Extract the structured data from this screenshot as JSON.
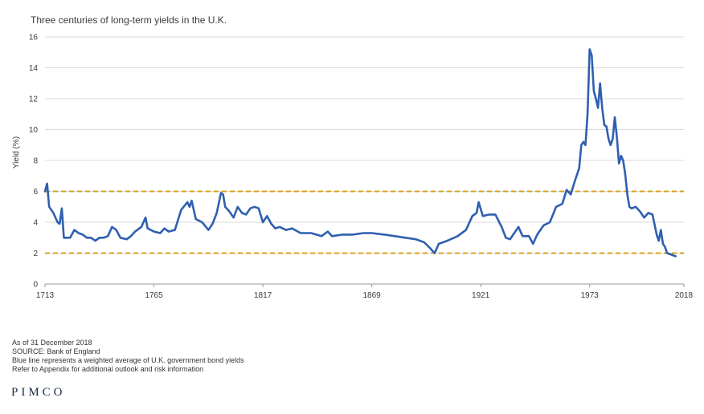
{
  "chart_data": {
    "type": "line",
    "title": "Three centuries of long-term yields in the U.K.",
    "xlabel": "",
    "ylabel": "Yield (%)",
    "xlim": [
      1713,
      2018
    ],
    "ylim": [
      0,
      16
    ],
    "yticks": [
      0,
      2,
      4,
      6,
      8,
      10,
      12,
      14,
      16
    ],
    "xticks": [
      "1713",
      "1765",
      "1817",
      "1869",
      "1921",
      "1973",
      "2018"
    ],
    "grid": true,
    "reference_lines": [
      2,
      6
    ],
    "colors": {
      "line": "#2f5fb0",
      "reference": "#d9a21b",
      "grid": "#d9d9d9"
    },
    "series": [
      {
        "values": [
          [
            1713,
            6.0
          ],
          [
            1714,
            6.5
          ],
          [
            1715,
            5.0
          ],
          [
            1717,
            4.6
          ],
          [
            1719,
            4.0
          ],
          [
            1720,
            3.9
          ],
          [
            1721,
            4.9
          ],
          [
            1722,
            3.0
          ],
          [
            1725,
            3.0
          ],
          [
            1727,
            3.5
          ],
          [
            1729,
            3.3
          ],
          [
            1731,
            3.2
          ],
          [
            1733,
            3.0
          ],
          [
            1735,
            3.0
          ],
          [
            1737,
            2.8
          ],
          [
            1739,
            3.0
          ],
          [
            1741,
            3.0
          ],
          [
            1743,
            3.1
          ],
          [
            1745,
            3.7
          ],
          [
            1747,
            3.5
          ],
          [
            1749,
            3.0
          ],
          [
            1752,
            2.9
          ],
          [
            1754,
            3.1
          ],
          [
            1756,
            3.4
          ],
          [
            1759,
            3.7
          ],
          [
            1761,
            4.3
          ],
          [
            1762,
            3.6
          ],
          [
            1765,
            3.4
          ],
          [
            1768,
            3.3
          ],
          [
            1770,
            3.6
          ],
          [
            1772,
            3.4
          ],
          [
            1775,
            3.5
          ],
          [
            1778,
            4.8
          ],
          [
            1781,
            5.3
          ],
          [
            1782,
            5.0
          ],
          [
            1783,
            5.4
          ],
          [
            1785,
            4.2
          ],
          [
            1788,
            4.0
          ],
          [
            1791,
            3.5
          ],
          [
            1793,
            3.9
          ],
          [
            1795,
            4.6
          ],
          [
            1797,
            5.9
          ],
          [
            1798,
            5.8
          ],
          [
            1799,
            5.0
          ],
          [
            1801,
            4.7
          ],
          [
            1803,
            4.3
          ],
          [
            1805,
            5.0
          ],
          [
            1807,
            4.6
          ],
          [
            1809,
            4.5
          ],
          [
            1811,
            4.9
          ],
          [
            1813,
            5.0
          ],
          [
            1815,
            4.9
          ],
          [
            1817,
            4.0
          ],
          [
            1819,
            4.4
          ],
          [
            1821,
            3.9
          ],
          [
            1823,
            3.6
          ],
          [
            1825,
            3.7
          ],
          [
            1828,
            3.5
          ],
          [
            1831,
            3.6
          ],
          [
            1835,
            3.3
          ],
          [
            1840,
            3.3
          ],
          [
            1845,
            3.1
          ],
          [
            1848,
            3.4
          ],
          [
            1850,
            3.1
          ],
          [
            1855,
            3.2
          ],
          [
            1860,
            3.2
          ],
          [
            1865,
            3.3
          ],
          [
            1869,
            3.3
          ],
          [
            1875,
            3.2
          ],
          [
            1880,
            3.1
          ],
          [
            1885,
            3.0
          ],
          [
            1890,
            2.9
          ],
          [
            1894,
            2.7
          ],
          [
            1897,
            2.3
          ],
          [
            1899,
            2.0
          ],
          [
            1901,
            2.6
          ],
          [
            1905,
            2.8
          ],
          [
            1910,
            3.1
          ],
          [
            1914,
            3.5
          ],
          [
            1917,
            4.4
          ],
          [
            1919,
            4.6
          ],
          [
            1920,
            5.3
          ],
          [
            1922,
            4.4
          ],
          [
            1925,
            4.5
          ],
          [
            1928,
            4.5
          ],
          [
            1931,
            3.7
          ],
          [
            1933,
            3.0
          ],
          [
            1935,
            2.9
          ],
          [
            1937,
            3.3
          ],
          [
            1939,
            3.7
          ],
          [
            1941,
            3.1
          ],
          [
            1944,
            3.1
          ],
          [
            1946,
            2.6
          ],
          [
            1948,
            3.2
          ],
          [
            1951,
            3.8
          ],
          [
            1954,
            4.0
          ],
          [
            1957,
            5.0
          ],
          [
            1960,
            5.2
          ],
          [
            1962,
            6.1
          ],
          [
            1964,
            5.8
          ],
          [
            1966,
            6.7
          ],
          [
            1968,
            7.5
          ],
          [
            1969,
            9.0
          ],
          [
            1970,
            9.2
          ],
          [
            1971,
            9.0
          ],
          [
            1972,
            11.0
          ],
          [
            1973,
            15.2
          ],
          [
            1974,
            14.8
          ],
          [
            1975,
            12.5
          ],
          [
            1976,
            12.0
          ],
          [
            1977,
            11.4
          ],
          [
            1978,
            13.0
          ],
          [
            1979,
            11.4
          ],
          [
            1980,
            10.3
          ],
          [
            1981,
            10.2
          ],
          [
            1982,
            9.4
          ],
          [
            1983,
            9.0
          ],
          [
            1984,
            9.4
          ],
          [
            1985,
            10.8
          ],
          [
            1986,
            9.5
          ],
          [
            1987,
            7.8
          ],
          [
            1988,
            8.3
          ],
          [
            1989,
            8.0
          ],
          [
            1990,
            7.1
          ],
          [
            1991,
            5.8
          ],
          [
            1992,
            5.0
          ],
          [
            1993,
            4.9
          ],
          [
            1995,
            5.0
          ],
          [
            1997,
            4.7
          ],
          [
            1999,
            4.3
          ],
          [
            2001,
            4.6
          ],
          [
            2003,
            4.5
          ],
          [
            2005,
            3.2
          ],
          [
            2006,
            2.8
          ],
          [
            2007,
            3.5
          ],
          [
            2008,
            2.6
          ],
          [
            2009,
            2.4
          ],
          [
            2010,
            2.0
          ],
          [
            2012,
            1.9
          ],
          [
            2014,
            1.8
          ]
        ]
      }
    ]
  },
  "notes": [
    "As of 31 December 2018",
    "SOURCE: Bank of England",
    "Blue line represents a weighted average of U.K. government bond yields",
    "Refer to Appendix for additional outlook and risk information"
  ],
  "logo": "PIMCO"
}
